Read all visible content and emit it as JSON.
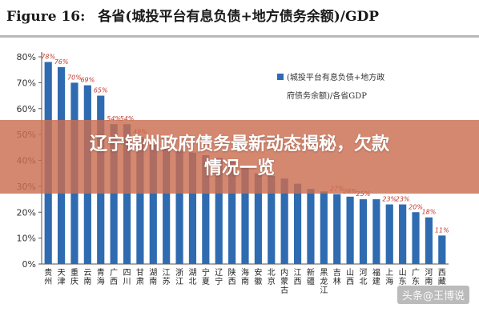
{
  "header": {
    "figure_label": "Figure 16:",
    "figure_title": "各省(城投平台有息负债+地方债务余额)/GDP"
  },
  "banner": {
    "line1": "辽宁锦州政府债务最新动态揭秘，欠款",
    "line2": "情况一览"
  },
  "watermark": {
    "text": "头条@王博说"
  },
  "chart_data": {
    "type": "bar",
    "title": "各省(城投平台有息负债+地方债务余额)/GDP",
    "categories": [
      "贵州",
      "天津",
      "重庆",
      "云南",
      "青海",
      "广西",
      "四川",
      "甘肃",
      "湖南",
      "江苏",
      "浙江",
      "湖北",
      "宁夏",
      "辽宁",
      "陕西",
      "海南",
      "安徽",
      "北京",
      "内蒙古",
      "江西",
      "新疆",
      "黑龙江",
      "吉林",
      "山西",
      "河北",
      "福建",
      "上海",
      "山东",
      "广东",
      "河南",
      "西藏"
    ],
    "values": [
      78,
      76,
      70,
      69,
      65,
      54,
      54,
      49,
      46,
      45,
      44,
      43,
      42,
      41,
      40,
      37,
      35,
      34,
      33,
      31,
      29,
      28,
      27,
      26,
      25,
      25,
      23,
      23,
      20,
      18,
      11
    ],
    "data_labels": [
      "78%",
      "76%",
      "70%",
      "69%",
      "65%",
      "54%",
      "54%",
      "49%",
      "",
      "",
      "",
      "",
      "",
      "",
      "",
      "",
      "",
      "",
      "",
      "",
      "",
      "",
      "27%",
      "26%",
      "25%",
      "",
      "23%",
      "23%",
      "20%",
      "18%",
      "11%"
    ],
    "y_ticks": [
      "0%",
      "10%",
      "20%",
      "30%",
      "40%",
      "50%",
      "60%",
      "70%",
      "80%"
    ],
    "ylim": [
      0,
      80
    ],
    "legend": {
      "label_line1": "(城投平台有息负债+地方政",
      "label_line2": "府债务余额)/各省GDP",
      "position": "top-right"
    },
    "bar_color": "#2f6bb0",
    "grid": false
  }
}
